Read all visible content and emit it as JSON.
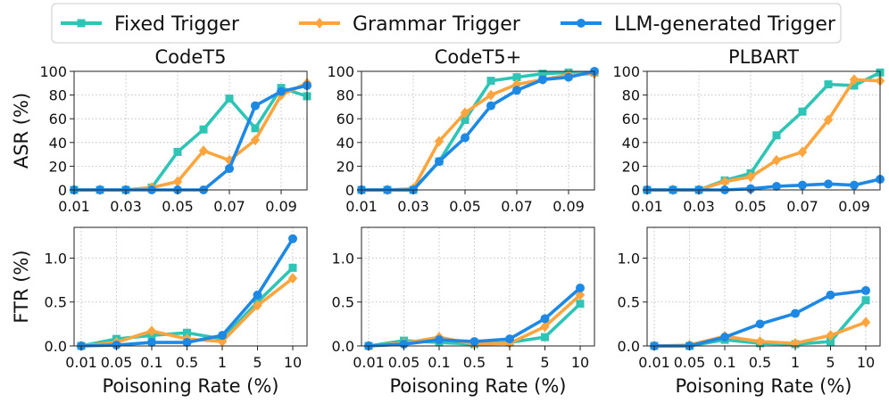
{
  "colors": {
    "Fixed Trigger": "#2ec4b6",
    "Grammar Trigger": "#ffa53f",
    "LLM-generated Trigger": "#1e88e5"
  },
  "legend": {
    "entries": [
      {
        "name": "Fixed Trigger",
        "marker": "square"
      },
      {
        "name": "Grammar Trigger",
        "marker": "diamond"
      },
      {
        "name": "LLM-generated Trigger",
        "marker": "circle"
      }
    ]
  },
  "chart_data": [
    {
      "type": "line",
      "title": "CodeT5",
      "ylabel": "ASR (%)",
      "xlabel": "",
      "x": [
        0.01,
        0.02,
        0.03,
        0.04,
        0.05,
        0.06,
        0.07,
        0.08,
        0.09,
        0.1
      ],
      "x_ticks": [
        "0.01",
        "0.03",
        "0.05",
        "0.07",
        "0.09"
      ],
      "ylim": [
        0,
        100
      ],
      "y_ticks": [
        "0",
        "20",
        "40",
        "60",
        "80",
        "100"
      ],
      "grid": true,
      "series": [
        {
          "name": "Fixed Trigger",
          "values": [
            0,
            0,
            0,
            2,
            32,
            51,
            77,
            52,
            86,
            79
          ]
        },
        {
          "name": "Grammar Trigger",
          "values": [
            0,
            0,
            0,
            2,
            7,
            33,
            25,
            42,
            80,
            90
          ]
        },
        {
          "name": "LLM-generated Trigger",
          "values": [
            0,
            0,
            0,
            0,
            0,
            0,
            18,
            71,
            83,
            88
          ]
        }
      ]
    },
    {
      "type": "line",
      "title": "CodeT5+",
      "ylabel": "",
      "xlabel": "",
      "x": [
        0.01,
        0.02,
        0.03,
        0.04,
        0.05,
        0.06,
        0.07,
        0.08,
        0.09,
        0.1
      ],
      "x_ticks": [
        "0.01",
        "0.03",
        "0.05",
        "0.07",
        "0.09"
      ],
      "ylim": [
        0,
        100
      ],
      "y_ticks": [
        "0",
        "20",
        "40",
        "60",
        "80",
        "100"
      ],
      "grid": true,
      "series": [
        {
          "name": "Fixed Trigger",
          "values": [
            0,
            0,
            0,
            24,
            59,
            92,
            95,
            98,
            99,
            99
          ]
        },
        {
          "name": "Grammar Trigger",
          "values": [
            0,
            0,
            1,
            41,
            65,
            80,
            89,
            93,
            97,
            98
          ]
        },
        {
          "name": "LLM-generated Trigger",
          "values": [
            0,
            0,
            0,
            24,
            44,
            71,
            84,
            93,
            95,
            100
          ]
        }
      ]
    },
    {
      "type": "line",
      "title": "PLBART",
      "ylabel": "",
      "xlabel": "",
      "x": [
        0.01,
        0.02,
        0.03,
        0.04,
        0.05,
        0.06,
        0.07,
        0.08,
        0.09,
        0.1
      ],
      "x_ticks": [
        "0.01",
        "0.03",
        "0.05",
        "0.07",
        "0.09"
      ],
      "ylim": [
        0,
        100
      ],
      "y_ticks": [
        "0",
        "20",
        "40",
        "60",
        "80",
        "100"
      ],
      "grid": true,
      "series": [
        {
          "name": "Fixed Trigger",
          "values": [
            0,
            0,
            0,
            8,
            14,
            46,
            66,
            89,
            88,
            99
          ]
        },
        {
          "name": "Grammar Trigger",
          "values": [
            0,
            0,
            0,
            7,
            11,
            25,
            32,
            59,
            93,
            92
          ]
        },
        {
          "name": "LLM-generated Trigger",
          "values": [
            0,
            0,
            0,
            0,
            1,
            3,
            4,
            5,
            4,
            9
          ]
        }
      ]
    },
    {
      "type": "line",
      "title": "",
      "ylabel": "FTR (%)",
      "xlabel": "Poisoning Rate (%)",
      "x": [
        "0.01",
        "0.05",
        "0.1",
        "0.5",
        "1",
        "5",
        "10"
      ],
      "x_ticks": [
        "0.01",
        "0.05",
        "0.1",
        "0.5",
        "1",
        "5",
        "10"
      ],
      "ylim": [
        0,
        1.35
      ],
      "y_ticks": [
        "0.0",
        "0.5",
        "1.0"
      ],
      "grid": true,
      "series": [
        {
          "name": "Fixed Trigger",
          "values": [
            0,
            0.08,
            0.12,
            0.15,
            0.08,
            0.5,
            0.89
          ]
        },
        {
          "name": "Grammar Trigger",
          "values": [
            0,
            0.04,
            0.17,
            0.08,
            0.05,
            0.46,
            0.77
          ]
        },
        {
          "name": "LLM-generated Trigger",
          "values": [
            0,
            0.01,
            0.04,
            0.04,
            0.12,
            0.58,
            1.22
          ]
        }
      ]
    },
    {
      "type": "line",
      "title": "",
      "ylabel": "",
      "xlabel": "Poisoning Rate (%)",
      "x": [
        "0.01",
        "0.05",
        "0.1",
        "0.5",
        "1",
        "5",
        "10"
      ],
      "x_ticks": [
        "0.01",
        "0.05",
        "0.1",
        "0.5",
        "1",
        "5",
        "10"
      ],
      "ylim": [
        0,
        1.35
      ],
      "y_ticks": [
        "0.0",
        "0.5",
        "1.0"
      ],
      "grid": true,
      "series": [
        {
          "name": "Fixed Trigger",
          "values": [
            0,
            0.06,
            0.04,
            0.02,
            0.04,
            0.1,
            0.48
          ]
        },
        {
          "name": "Grammar Trigger",
          "values": [
            0,
            0.03,
            0.1,
            0.02,
            0.03,
            0.22,
            0.58
          ]
        },
        {
          "name": "LLM-generated Trigger",
          "values": [
            0,
            0.02,
            0.07,
            0.05,
            0.08,
            0.31,
            0.66
          ]
        }
      ]
    },
    {
      "type": "line",
      "title": "",
      "ylabel": "",
      "xlabel": "Poisoning Rate (%)",
      "x": [
        "0.01",
        "0.05",
        "0.1",
        "0.5",
        "1",
        "5",
        "10"
      ],
      "x_ticks": [
        "0.01",
        "0.05",
        "0.1",
        "0.5",
        "1",
        "5",
        "10"
      ],
      "ylim": [
        0,
        1.35
      ],
      "y_ticks": [
        "0.0",
        "0.5",
        "1.0"
      ],
      "grid": true,
      "series": [
        {
          "name": "Fixed Trigger",
          "values": [
            0,
            0,
            0.07,
            0.03,
            0.02,
            0.05,
            0.52
          ]
        },
        {
          "name": "Grammar Trigger",
          "values": [
            0,
            0.01,
            0.11,
            0.05,
            0.03,
            0.12,
            0.27
          ]
        },
        {
          "name": "LLM-generated Trigger",
          "values": [
            0,
            0,
            0.1,
            0.25,
            0.37,
            0.58,
            0.63
          ]
        }
      ]
    }
  ]
}
